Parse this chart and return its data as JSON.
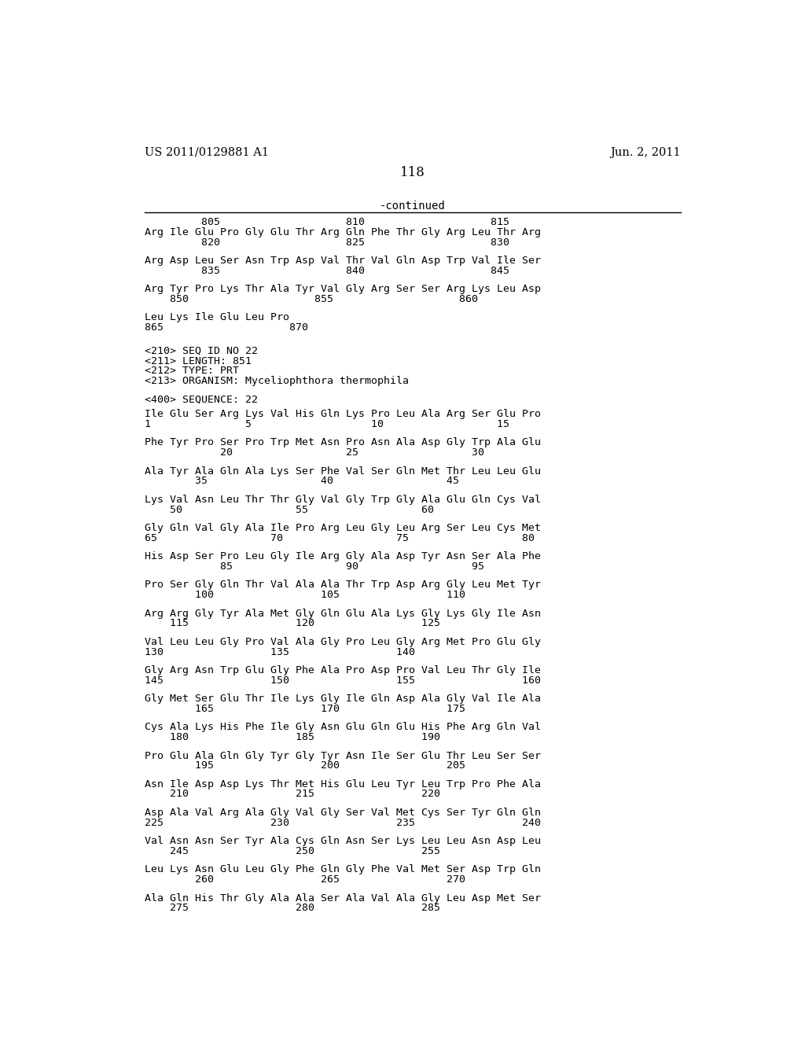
{
  "bg_color": "#ffffff",
  "header_left": "US 2011/0129881 A1",
  "header_right": "Jun. 2, 2011",
  "page_number": "118",
  "continued_label": "-continued",
  "top_lines": [
    [
      "         805                    810                    815",
      false
    ],
    [
      "Arg Ile Glu Pro Gly Glu Thr Arg Gln Phe Thr Gly Arg Leu Thr Arg",
      false
    ],
    [
      "         820                    825                    830",
      true
    ],
    [
      "",
      false
    ],
    [
      "Arg Asp Leu Ser Asn Trp Asp Val Thr Val Gln Asp Trp Val Ile Ser",
      false
    ],
    [
      "         835                    840                    845",
      true
    ],
    [
      "",
      false
    ],
    [
      "Arg Tyr Pro Lys Thr Ala Tyr Val Gly Arg Ser Ser Arg Lys Leu Asp",
      false
    ],
    [
      "    850                    855                    860",
      true
    ],
    [
      "",
      false
    ],
    [
      "Leu Lys Ile Glu Leu Pro",
      false
    ],
    [
      "865                    870",
      true
    ]
  ],
  "meta_lines": [
    "<210> SEQ ID NO 22",
    "<211> LENGTH: 851",
    "<212> TYPE: PRT",
    "<213> ORGANISM: Myceliophthora thermophila"
  ],
  "seq_header": "<400> SEQUENCE: 22",
  "seq_lines": [
    [
      "Ile Glu Ser Arg Lys Val His Gln Lys Pro Leu Ala Arg Ser Glu Pro",
      false
    ],
    [
      "1               5                   10                  15",
      true
    ],
    [
      "",
      false
    ],
    [
      "Phe Tyr Pro Ser Pro Trp Met Asn Pro Asn Ala Asp Gly Trp Ala Glu",
      false
    ],
    [
      "            20                  25                  30",
      true
    ],
    [
      "",
      false
    ],
    [
      "Ala Tyr Ala Gln Ala Lys Ser Phe Val Ser Gln Met Thr Leu Leu Glu",
      false
    ],
    [
      "        35                  40                  45",
      true
    ],
    [
      "",
      false
    ],
    [
      "Lys Val Asn Leu Thr Thr Gly Val Gly Trp Gly Ala Glu Gln Cys Val",
      false
    ],
    [
      "    50                  55                  60",
      true
    ],
    [
      "",
      false
    ],
    [
      "Gly Gln Val Gly Ala Ile Pro Arg Leu Gly Leu Arg Ser Leu Cys Met",
      false
    ],
    [
      "65                  70                  75                  80",
      true
    ],
    [
      "",
      false
    ],
    [
      "His Asp Ser Pro Leu Gly Ile Arg Gly Ala Asp Tyr Asn Ser Ala Phe",
      false
    ],
    [
      "            85                  90                  95",
      true
    ],
    [
      "",
      false
    ],
    [
      "Pro Ser Gly Gln Thr Val Ala Ala Thr Trp Asp Arg Gly Leu Met Tyr",
      false
    ],
    [
      "        100                 105                 110",
      true
    ],
    [
      "",
      false
    ],
    [
      "Arg Arg Gly Tyr Ala Met Gly Gln Glu Ala Lys Gly Lys Gly Ile Asn",
      false
    ],
    [
      "    115                 120                 125",
      true
    ],
    [
      "",
      false
    ],
    [
      "Val Leu Leu Gly Pro Val Ala Gly Pro Leu Gly Arg Met Pro Glu Gly",
      false
    ],
    [
      "130                 135                 140",
      true
    ],
    [
      "",
      false
    ],
    [
      "Gly Arg Asn Trp Glu Gly Phe Ala Pro Asp Pro Val Leu Thr Gly Ile",
      false
    ],
    [
      "145                 150                 155                 160",
      true
    ],
    [
      "",
      false
    ],
    [
      "Gly Met Ser Glu Thr Ile Lys Gly Ile Gln Asp Ala Gly Val Ile Ala",
      false
    ],
    [
      "        165                 170                 175",
      true
    ],
    [
      "",
      false
    ],
    [
      "Cys Ala Lys His Phe Ile Gly Asn Glu Gln Glu His Phe Arg Gln Val",
      false
    ],
    [
      "    180                 185                 190",
      true
    ],
    [
      "",
      false
    ],
    [
      "Pro Glu Ala Gln Gly Tyr Gly Tyr Asn Ile Ser Glu Thr Leu Ser Ser",
      false
    ],
    [
      "        195                 200                 205",
      true
    ],
    [
      "",
      false
    ],
    [
      "Asn Ile Asp Asp Lys Thr Met His Glu Leu Tyr Leu Trp Pro Phe Ala",
      false
    ],
    [
      "    210                 215                 220",
      true
    ],
    [
      "",
      false
    ],
    [
      "Asp Ala Val Arg Ala Gly Val Gly Ser Val Met Cys Ser Tyr Gln Gln",
      false
    ],
    [
      "225                 230                 235                 240",
      true
    ],
    [
      "",
      false
    ],
    [
      "Val Asn Asn Ser Tyr Ala Cys Gln Asn Ser Lys Leu Leu Asn Asp Leu",
      false
    ],
    [
      "    245                 250                 255",
      true
    ],
    [
      "",
      false
    ],
    [
      "Leu Lys Asn Glu Leu Gly Phe Gln Gly Phe Val Met Ser Asp Trp Gln",
      false
    ],
    [
      "        260                 265                 270",
      true
    ],
    [
      "",
      false
    ],
    [
      "Ala Gln His Thr Gly Ala Ala Ser Ala Val Ala Gly Leu Asp Met Ser",
      false
    ],
    [
      "    275                 280                 285",
      true
    ]
  ]
}
